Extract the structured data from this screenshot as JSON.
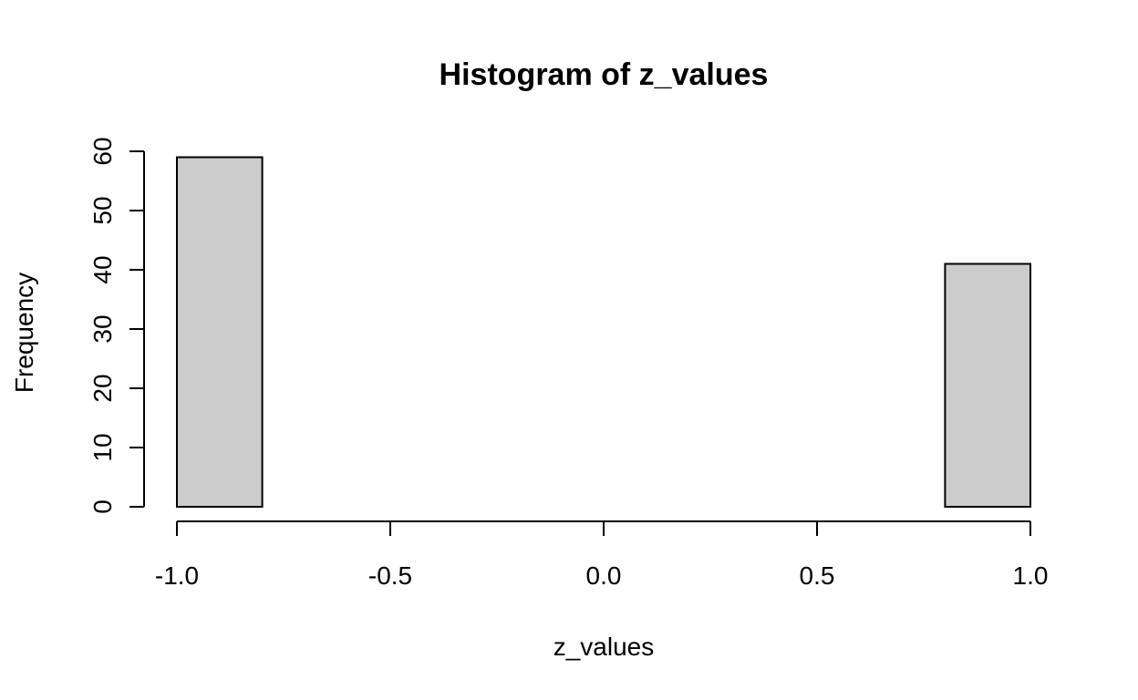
{
  "chart_data": {
    "type": "bar",
    "title": "Histogram of z_values",
    "xlabel": "z_values",
    "ylabel": "Frequency",
    "xlim": [
      -1.0,
      1.0
    ],
    "ylim": [
      0,
      60
    ],
    "x_ticks": [
      -1.0,
      -0.5,
      0.0,
      0.5,
      1.0
    ],
    "x_tick_labels": [
      "-1.0",
      "-0.5",
      "0.0",
      "0.5",
      "1.0"
    ],
    "y_ticks": [
      0,
      10,
      20,
      30,
      40,
      50,
      60
    ],
    "y_tick_labels": [
      "0",
      "10",
      "20",
      "30",
      "40",
      "50",
      "60"
    ],
    "bins": [
      {
        "start": -1.0,
        "end": -0.8,
        "count": 59
      },
      {
        "start": -0.8,
        "end": -0.6,
        "count": 0
      },
      {
        "start": -0.6,
        "end": -0.4,
        "count": 0
      },
      {
        "start": -0.4,
        "end": -0.2,
        "count": 0
      },
      {
        "start": -0.2,
        "end": 0.0,
        "count": 0
      },
      {
        "start": 0.0,
        "end": 0.2,
        "count": 0
      },
      {
        "start": 0.2,
        "end": 0.4,
        "count": 0
      },
      {
        "start": 0.4,
        "end": 0.6,
        "count": 0
      },
      {
        "start": 0.6,
        "end": 0.8,
        "count": 0
      },
      {
        "start": 0.8,
        "end": 1.0,
        "count": 41
      }
    ],
    "bar_fill": "#cccccc",
    "bar_stroke": "#000000",
    "grid": false,
    "legend": false
  }
}
